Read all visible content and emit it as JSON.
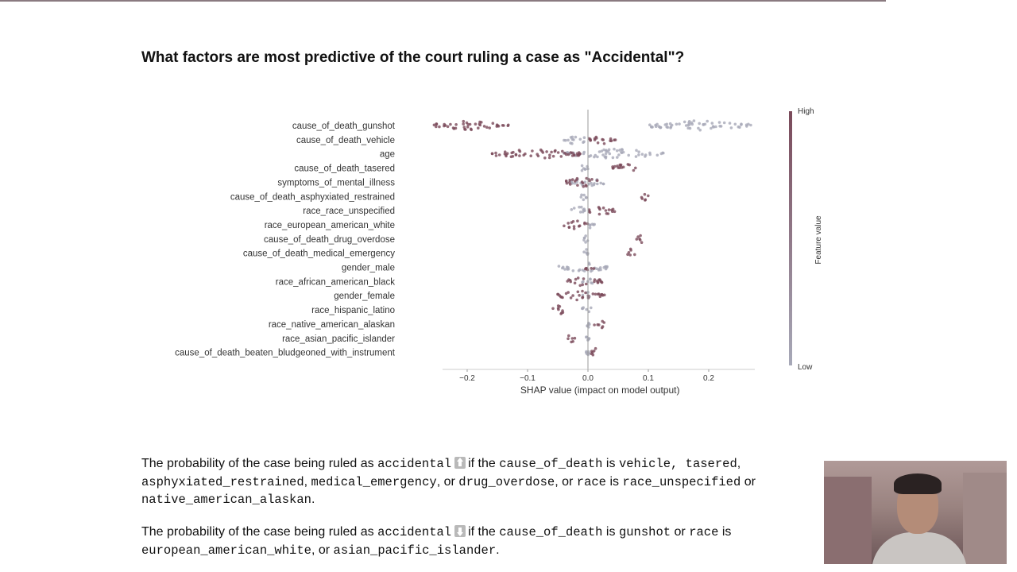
{
  "slide": {
    "heading": "What factors are most predictive of the court ruling a case as \"Accidental\"?"
  },
  "chart_data": {
    "type": "scatter",
    "subtype": "shap_beeswarm",
    "xlabel": "SHAP value (impact on model output)",
    "xlim": [
      -0.26,
      0.29
    ],
    "xticks": [
      -0.2,
      -0.1,
      0.0,
      0.1,
      0.2
    ],
    "xtick_labels": [
      "−0.2",
      "−0.1",
      "0.0",
      "0.1",
      "0.2"
    ],
    "colorbar": {
      "label": "Feature value",
      "high": "High",
      "low": "Low",
      "high_color": "#7a4a5a",
      "low_color": "#a7a9b8"
    },
    "colors": {
      "high": "#7a4a5a",
      "low": "#a7a9b8",
      "zero_line": "#999999"
    },
    "features": [
      {
        "name": "cause_of_death_gunshot",
        "high_range": [
          -0.255,
          -0.13
        ],
        "low_range": [
          0.1,
          0.27
        ]
      },
      {
        "name": "cause_of_death_vehicle",
        "high_range": [
          0.0,
          0.05
        ],
        "low_range": [
          -0.04,
          0.0
        ]
      },
      {
        "name": "age",
        "high_range": [
          -0.165,
          -0.01
        ],
        "low_range": [
          -0.04,
          0.13
        ]
      },
      {
        "name": "cause_of_death_tasered",
        "high_range": [
          0.04,
          0.085
        ],
        "low_range": [
          -0.02,
          0.0
        ]
      },
      {
        "name": "symptoms_of_mental_illness",
        "high_range": [
          -0.04,
          0.02
        ],
        "low_range": [
          -0.03,
          0.03
        ]
      },
      {
        "name": "cause_of_death_asphyxiated_restrained",
        "high_range": [
          0.087,
          0.1
        ],
        "low_range": [
          -0.012,
          0.0
        ]
      },
      {
        "name": "race_race_unspecified",
        "high_range": [
          0.0,
          0.045
        ],
        "low_range": [
          -0.03,
          0.0
        ]
      },
      {
        "name": "race_european_american_white",
        "high_range": [
          -0.04,
          0.0
        ],
        "low_range": [
          0.0,
          0.015
        ]
      },
      {
        "name": "cause_of_death_drug_overdose",
        "high_range": [
          0.08,
          0.095
        ],
        "low_range": [
          -0.007,
          0.0
        ]
      },
      {
        "name": "cause_of_death_medical_emergency",
        "high_range": [
          0.065,
          0.08
        ],
        "low_range": [
          -0.007,
          0.0
        ]
      },
      {
        "name": "gender_male",
        "high_range": [
          -0.005,
          0.01
        ],
        "low_range": [
          -0.05,
          0.035
        ]
      },
      {
        "name": "race_african_american_black",
        "high_range": [
          -0.035,
          0.025
        ],
        "low_range": [
          -0.01,
          0.01
        ]
      },
      {
        "name": "gender_female",
        "high_range": [
          -0.055,
          0.03
        ],
        "low_range": [
          -0.01,
          0.005
        ]
      },
      {
        "name": "race_hispanic_latino",
        "high_range": [
          -0.06,
          -0.035
        ],
        "low_range": [
          -0.01,
          0.008
        ]
      },
      {
        "name": "race_native_american_alaskan",
        "high_range": [
          0.01,
          0.03
        ],
        "low_range": [
          -0.004,
          0.003
        ]
      },
      {
        "name": "race_asian_pacific_islander",
        "high_range": [
          -0.035,
          -0.02
        ],
        "low_range": [
          -0.003,
          0.002
        ]
      },
      {
        "name": "cause_of_death_beaten_bludgeoned_with_instrument",
        "high_range": [
          0.004,
          0.02
        ],
        "low_range": [
          -0.003,
          0.002
        ]
      }
    ]
  },
  "explanation_1": {
    "t1": "The probability of the case being ruled as",
    "c1": "accidental",
    "t2": "if the",
    "c2": "cause_of_death",
    "t3": "is",
    "c3": "vehicle, tasered",
    "t4": ",",
    "c4": "asphyxiated_restrained",
    "t5": ",",
    "c5": "medical_emergency",
    "t6": ", or",
    "c6": "drug_overdose",
    "t7": ", or",
    "c7": "race",
    "t8": "is",
    "c8": "race_unspecified",
    "t9": "or",
    "c9": "native_american_alaskan",
    "t10": ".",
    "arrow_icon": "arrow-up-icon"
  },
  "explanation_2": {
    "t1": "The probability of the case being ruled as",
    "c1": "accidental",
    "t2": "if the",
    "c2": "cause_of_death",
    "t3": "is",
    "c3": "gunshot",
    "t4": "or",
    "c4": "race",
    "t5": "is",
    "c5": "european_american_white",
    "t6": ", or",
    "c6": "asian_pacific_islander",
    "t7": ".",
    "arrow_icon": "arrow-down-icon"
  }
}
